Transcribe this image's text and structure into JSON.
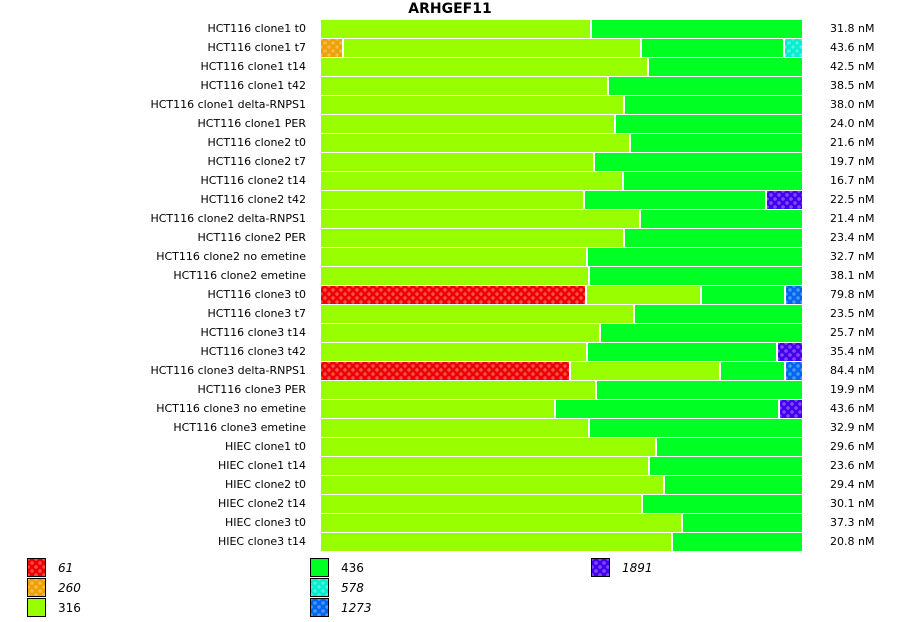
{
  "chart_data": {
    "type": "bar",
    "orientation": "horizontal",
    "stacked": true,
    "normalized": true,
    "title": "ARHGEF11",
    "xlabel": "",
    "ylabel": "",
    "value_unit": "nM",
    "legend": {
      "placement": "bottom",
      "entries": [
        {
          "key": "61",
          "label": "61",
          "color": "#ee0000",
          "pattern": true,
          "italic": true
        },
        {
          "key": "260",
          "label": "260",
          "color": "#eea000",
          "pattern": true,
          "italic": true
        },
        {
          "key": "316",
          "label": "316",
          "color": "#99ff00",
          "pattern": false,
          "italic": false
        },
        {
          "key": "436",
          "label": "436",
          "color": "#00ff22",
          "pattern": false,
          "italic": false
        },
        {
          "key": "578",
          "label": "578",
          "color": "#00eecc",
          "pattern": true,
          "italic": true
        },
        {
          "key": "1273",
          "label": "1273",
          "color": "#0066ee",
          "pattern": true,
          "italic": true
        },
        {
          "key": "1891",
          "label": "1891",
          "color": "#4400ee",
          "pattern": true,
          "italic": true
        }
      ]
    },
    "rows": [
      {
        "label": "HCT116 clone1 t0",
        "total": "31.8 nM",
        "segments": [
          {
            "key": "316",
            "frac": 0.563
          },
          {
            "key": "436",
            "frac": 0.437
          }
        ]
      },
      {
        "label": "HCT116 clone1 t7",
        "total": "43.6 nM",
        "segments": [
          {
            "key": "260",
            "frac": 0.048
          },
          {
            "key": "316",
            "frac": 0.619
          },
          {
            "key": "436",
            "frac": 0.298
          },
          {
            "key": "578",
            "frac": 0.035
          }
        ]
      },
      {
        "label": "HCT116 clone1 t14",
        "total": "42.5 nM",
        "segments": [
          {
            "key": "316",
            "frac": 0.681
          },
          {
            "key": "436",
            "frac": 0.319
          }
        ]
      },
      {
        "label": "HCT116 clone1 t42",
        "total": "38.5 nM",
        "segments": [
          {
            "key": "316",
            "frac": 0.598
          },
          {
            "key": "436",
            "frac": 0.402
          }
        ]
      },
      {
        "label": "HCT116 clone1 delta-RNPS1",
        "total": "38.0 nM",
        "segments": [
          {
            "key": "316",
            "frac": 0.633
          },
          {
            "key": "436",
            "frac": 0.367
          }
        ]
      },
      {
        "label": "HCT116 clone1 PER",
        "total": "24.0 nM",
        "segments": [
          {
            "key": "316",
            "frac": 0.613
          },
          {
            "key": "436",
            "frac": 0.387
          }
        ]
      },
      {
        "label": "HCT116 clone2 t0",
        "total": "21.6 nM",
        "segments": [
          {
            "key": "316",
            "frac": 0.644
          },
          {
            "key": "436",
            "frac": 0.356
          }
        ]
      },
      {
        "label": "HCT116 clone2 t7",
        "total": "19.7 nM",
        "segments": [
          {
            "key": "316",
            "frac": 0.569
          },
          {
            "key": "436",
            "frac": 0.431
          }
        ]
      },
      {
        "label": "HCT116 clone2 t14",
        "total": "16.7 nM",
        "segments": [
          {
            "key": "316",
            "frac": 0.629
          },
          {
            "key": "436",
            "frac": 0.371
          }
        ]
      },
      {
        "label": "HCT116 clone2 t42",
        "total": "22.5 nM",
        "segments": [
          {
            "key": "316",
            "frac": 0.548
          },
          {
            "key": "436",
            "frac": 0.379
          },
          {
            "key": "1891",
            "frac": 0.073
          }
        ]
      },
      {
        "label": "HCT116 clone2 delta-RNPS1",
        "total": "21.4 nM",
        "segments": [
          {
            "key": "316",
            "frac": 0.665
          },
          {
            "key": "436",
            "frac": 0.335
          }
        ]
      },
      {
        "label": "HCT116 clone2 PER",
        "total": "23.4 nM",
        "segments": [
          {
            "key": "316",
            "frac": 0.633
          },
          {
            "key": "436",
            "frac": 0.367
          }
        ]
      },
      {
        "label": "HCT116 clone2 no emetine",
        "total": "32.7 nM",
        "segments": [
          {
            "key": "316",
            "frac": 0.556
          },
          {
            "key": "436",
            "frac": 0.444
          }
        ]
      },
      {
        "label": "HCT116 clone2 emetine",
        "total": "38.1 nM",
        "segments": [
          {
            "key": "316",
            "frac": 0.56
          },
          {
            "key": "436",
            "frac": 0.44
          }
        ]
      },
      {
        "label": "HCT116 clone3 t0",
        "total": "79.8 nM",
        "segments": [
          {
            "key": "61",
            "frac": 0.552
          },
          {
            "key": "316",
            "frac": 0.24
          },
          {
            "key": "436",
            "frac": 0.175
          },
          {
            "key": "1273",
            "frac": 0.033
          }
        ]
      },
      {
        "label": "HCT116 clone3 t7",
        "total": "23.5 nM",
        "segments": [
          {
            "key": "316",
            "frac": 0.652
          },
          {
            "key": "436",
            "frac": 0.348
          }
        ]
      },
      {
        "label": "HCT116 clone3 t14",
        "total": "25.7 nM",
        "segments": [
          {
            "key": "316",
            "frac": 0.583
          },
          {
            "key": "436",
            "frac": 0.417
          }
        ]
      },
      {
        "label": "HCT116 clone3 t42",
        "total": "35.4 nM",
        "segments": [
          {
            "key": "316",
            "frac": 0.556
          },
          {
            "key": "436",
            "frac": 0.394
          },
          {
            "key": "1891",
            "frac": 0.05
          }
        ]
      },
      {
        "label": "HCT116 clone3 delta-RNPS1",
        "total": "84.4 nM",
        "segments": [
          {
            "key": "61",
            "frac": 0.519
          },
          {
            "key": "316",
            "frac": 0.313
          },
          {
            "key": "436",
            "frac": 0.135
          },
          {
            "key": "1273",
            "frac": 0.033
          }
        ]
      },
      {
        "label": "HCT116 clone3 PER",
        "total": "19.9 nM",
        "segments": [
          {
            "key": "316",
            "frac": 0.573
          },
          {
            "key": "436",
            "frac": 0.427
          }
        ]
      },
      {
        "label": "HCT116 clone3 no emetine",
        "total": "43.6 nM",
        "segments": [
          {
            "key": "316",
            "frac": 0.488
          },
          {
            "key": "436",
            "frac": 0.467
          },
          {
            "key": "1891",
            "frac": 0.045
          }
        ]
      },
      {
        "label": "HCT116 clone3 emetine",
        "total": "32.9 nM",
        "segments": [
          {
            "key": "316",
            "frac": 0.56
          },
          {
            "key": "436",
            "frac": 0.44
          }
        ]
      },
      {
        "label": "HIEC clone1 t0",
        "total": "29.6 nM",
        "segments": [
          {
            "key": "316",
            "frac": 0.698
          },
          {
            "key": "436",
            "frac": 0.302
          }
        ]
      },
      {
        "label": "HIEC clone1 t14",
        "total": "23.6 nM",
        "segments": [
          {
            "key": "316",
            "frac": 0.683
          },
          {
            "key": "436",
            "frac": 0.317
          }
        ]
      },
      {
        "label": "HIEC clone2 t0",
        "total": "29.4 nM",
        "segments": [
          {
            "key": "316",
            "frac": 0.715
          },
          {
            "key": "436",
            "frac": 0.285
          }
        ]
      },
      {
        "label": "HIEC clone2 t14",
        "total": "30.1 nM",
        "segments": [
          {
            "key": "316",
            "frac": 0.669
          },
          {
            "key": "436",
            "frac": 0.331
          }
        ]
      },
      {
        "label": "HIEC clone3 t0",
        "total": "37.3 nM",
        "segments": [
          {
            "key": "316",
            "frac": 0.752
          },
          {
            "key": "436",
            "frac": 0.248
          }
        ]
      },
      {
        "label": "HIEC clone3 t14",
        "total": "20.8 nM",
        "segments": [
          {
            "key": "316",
            "frac": 0.731
          },
          {
            "key": "436",
            "frac": 0.269
          }
        ]
      }
    ]
  }
}
